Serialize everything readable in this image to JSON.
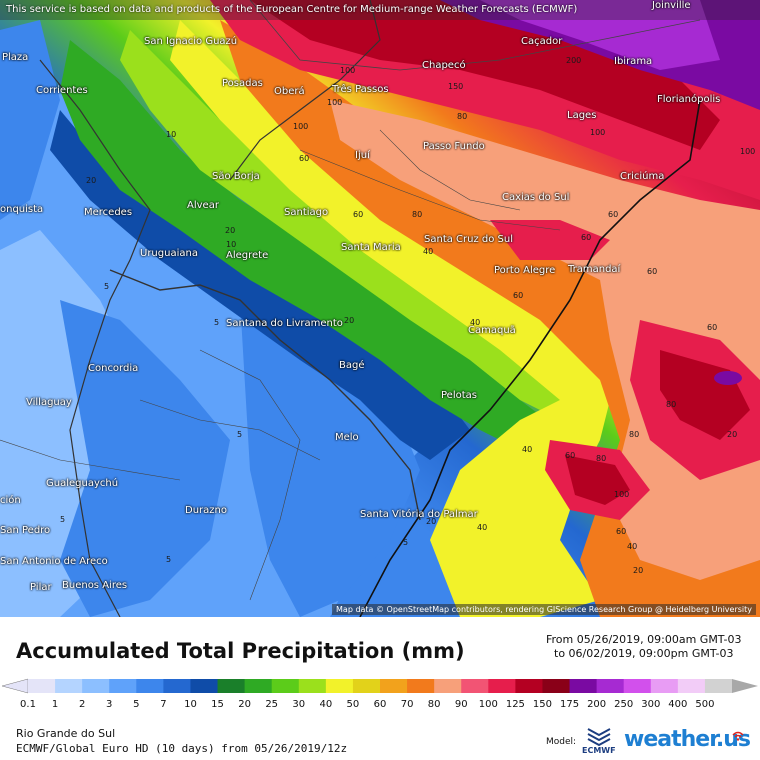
{
  "notice": "This service is based on data and products of the European Centre for Medium-range Weather Forecasts (ECMWF)",
  "attribution": "Map data © OpenStreetMap contributors, rendering GIScience Research Group @ Heidelberg University",
  "title": "Accumulated Total Precipitation (mm)",
  "period": {
    "from": "From 05/26/2019, 09:00am GMT-03",
    "to": "to 06/02/2019, 09:00pm GMT-03"
  },
  "region": "Rio Grande do Sul",
  "model_line": "ECMWF/Global Euro HD (10 days) from 05/26/2019/12z",
  "brand": {
    "model_label": "Model:",
    "ecmwf": "ECMWF",
    "site": "weather.us"
  },
  "legend": {
    "labels": [
      "0.1",
      "1",
      "2",
      "3",
      "5",
      "7",
      "10",
      "15",
      "20",
      "25",
      "30",
      "40",
      "50",
      "60",
      "70",
      "80",
      "90",
      "100",
      "125",
      "150",
      "175",
      "200",
      "250",
      "300",
      "400",
      "500"
    ],
    "colors": [
      "#e4e4f8",
      "#b4d4ff",
      "#8cbfff",
      "#5fa2fa",
      "#3d86ec",
      "#2468d0",
      "#0f4ca8",
      "#1a7f2a",
      "#2faa24",
      "#5ccc1a",
      "#9be01c",
      "#f2f22a",
      "#e2d21a",
      "#f2a21c",
      "#f27a1c",
      "#f7a07a",
      "#f25474",
      "#e61e4c",
      "#b40022",
      "#8a0018",
      "#7a0aa2",
      "#a62ad2",
      "#d250ec",
      "#e89cf4",
      "#f2ccf7",
      "#d2d2d2"
    ]
  },
  "cities": [
    {
      "name": "Joinville"
    },
    {
      "name": "San Ignacio Guazú"
    },
    {
      "name": "Caçador"
    },
    {
      "name": "Chapecó"
    },
    {
      "name": "Ibirama"
    },
    {
      "name": "Corrientes"
    },
    {
      "name": "Posadas"
    },
    {
      "name": "Oberá"
    },
    {
      "name": "Três Passos"
    },
    {
      "name": "Florianópolis"
    },
    {
      "name": "Lages"
    },
    {
      "name": "Ijuí"
    },
    {
      "name": "Passo Fundo"
    },
    {
      "name": "São Borja"
    },
    {
      "name": "Criciúma"
    },
    {
      "name": "Alvear"
    },
    {
      "name": "Mercedes"
    },
    {
      "name": "Santiago"
    },
    {
      "name": "Caxias do Sul"
    },
    {
      "name": "Santa Maria"
    },
    {
      "name": "Santa Cruz do Sul"
    },
    {
      "name": "Uruguaiana"
    },
    {
      "name": "Alegrete"
    },
    {
      "name": "Tramandaí"
    },
    {
      "name": "Porto Alegre"
    },
    {
      "name": "Santana do Livramento"
    },
    {
      "name": "Camaquã"
    },
    {
      "name": "Concordia"
    },
    {
      "name": "Bagé"
    },
    {
      "name": "Villaguay"
    },
    {
      "name": "Pelotas"
    },
    {
      "name": "Melo"
    },
    {
      "name": "Gualeguaychú"
    },
    {
      "name": "Durazno"
    },
    {
      "name": "Santa Vitória do Palmar"
    },
    {
      "name": "San Pedro"
    },
    {
      "name": "San Antonio de Areco"
    },
    {
      "name": "Pilar"
    },
    {
      "name": "Buenos Aires"
    },
    {
      "name": "Plaza"
    },
    {
      "name": "onquista"
    },
    {
      "name": "ción"
    }
  ],
  "contours": [
    "100",
    "100",
    "100",
    "100",
    "150",
    "200",
    "60",
    "80",
    "60",
    "80",
    "60",
    "40",
    "60",
    "60",
    "100",
    "40",
    "20",
    "20",
    "20",
    "20",
    "20",
    "10",
    "5",
    "5",
    "5",
    "5",
    "40",
    "40",
    "80",
    "80",
    "100",
    "80",
    "60",
    "40",
    "20",
    "60",
    "60",
    "60",
    "10",
    "5",
    "5"
  ]
}
